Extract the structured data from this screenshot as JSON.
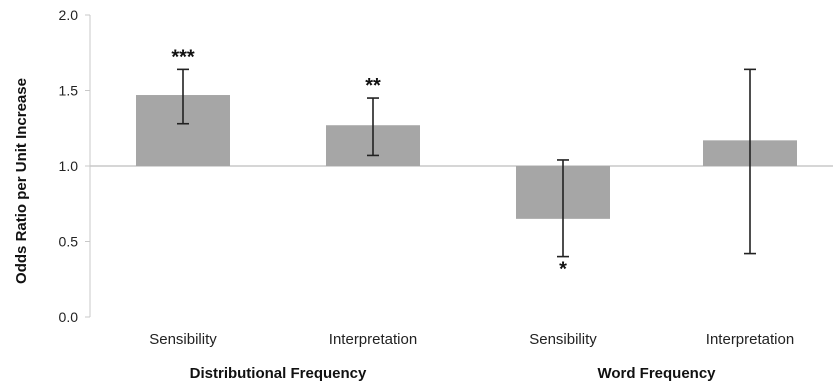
{
  "chart_data": {
    "type": "bar",
    "title": "",
    "xlabel": "",
    "ylabel": "Odds Ratio per Unit Increase",
    "ylim": [
      0.0,
      2.0
    ],
    "yticks": [
      "0.0",
      "0.5",
      "1.0",
      "1.5",
      "2.0"
    ],
    "baseline": 1.0,
    "grid": false,
    "colors": {
      "bar": "#a6a6a6",
      "error_bar": "#222222",
      "axis": "#c8c8c8"
    },
    "categories": [
      "Sensibility",
      "Interpretation",
      "Sensibility",
      "Interpretation"
    ],
    "values": [
      1.47,
      1.27,
      0.65,
      1.17
    ],
    "error_low": [
      1.28,
      1.07,
      0.4,
      0.42
    ],
    "error_high": [
      1.64,
      1.45,
      1.04,
      1.64
    ],
    "significance": [
      "***",
      "**",
      "*",
      ""
    ],
    "groups": [
      {
        "label": "Distributional Frequency",
        "categories": [
          0,
          1
        ]
      },
      {
        "label": "Word Frequency",
        "categories": [
          2,
          3
        ]
      }
    ]
  }
}
